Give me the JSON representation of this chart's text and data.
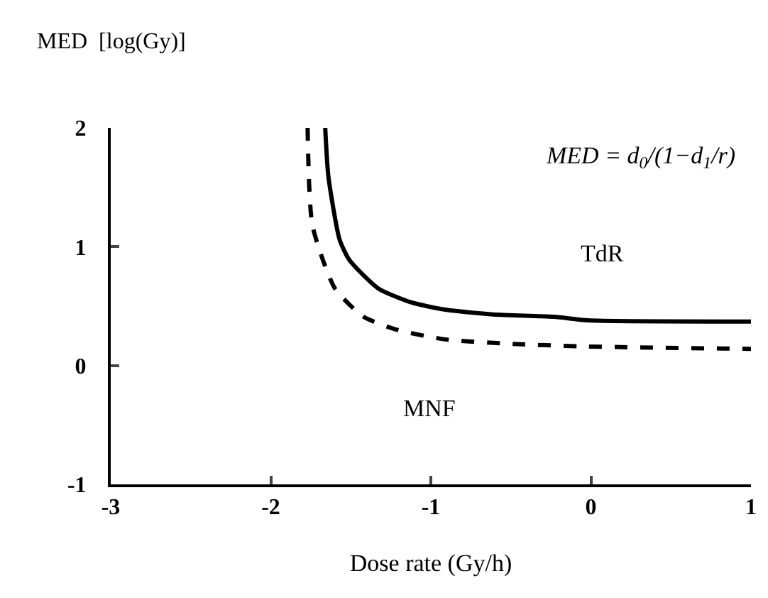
{
  "chart_data": {
    "type": "line",
    "ylabel": "MED  [log(Gy)]",
    "xlabel": "Dose rate (Gy/h)",
    "xlim": [
      -3,
      1
    ],
    "xticks": [
      -3,
      -2,
      -1,
      0,
      1
    ],
    "ylim": [
      -1,
      2
    ],
    "yticks": [
      -1,
      0,
      1,
      2
    ],
    "grid": false,
    "legend": false,
    "marker": "none",
    "annotations": [
      "MED = d$_{0}$/(1−d$_{1}$/r)"
    ],
    "series": [
      {
        "name": "TdR",
        "color": "#000000",
        "line_style": "solid",
        "x": [
          -1.66,
          -1.64,
          -1.57,
          -1.51,
          -1.33,
          -1.12,
          -0.91,
          -0.61,
          -0.23,
          -0.02,
          1.0
        ],
        "values": [
          2,
          1.59,
          1.06,
          0.89,
          0.65,
          0.53,
          0.47,
          0.43,
          0.41,
          0.38,
          0.37
        ]
      },
      {
        "name": "MNF",
        "color": "#000000",
        "line_style": "dashed",
        "x": [
          -1.77,
          -1.74,
          -1.6,
          -1.42,
          -1.21,
          -0.91,
          -0.46,
          -0.02,
          1.0
        ],
        "values": [
          2,
          1.18,
          0.65,
          0.41,
          0.3,
          0.22,
          0.18,
          0.16,
          0.14
        ]
      }
    ]
  }
}
